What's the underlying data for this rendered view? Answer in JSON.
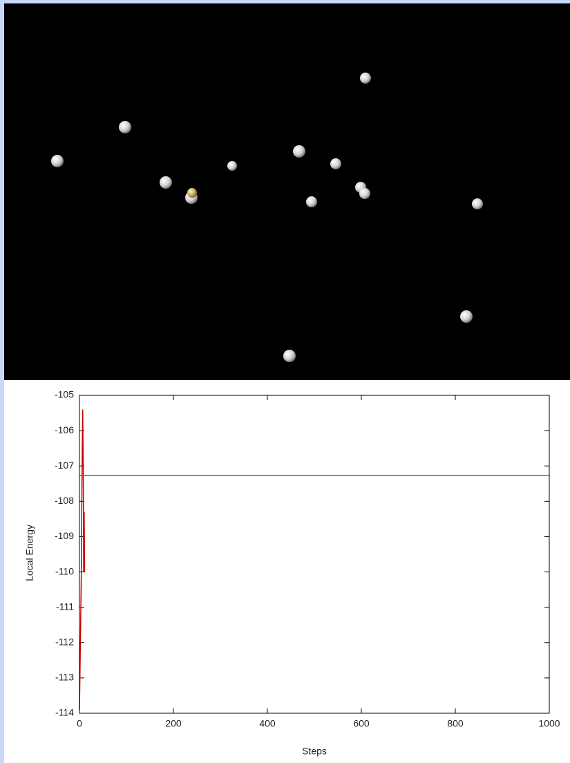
{
  "chart_data": {
    "type": "line",
    "x_label": "Steps",
    "y_label": "Local Energy",
    "xlim": [
      0,
      1000
    ],
    "xticks": [
      0,
      200,
      400,
      600,
      800,
      1000
    ],
    "ylim": [
      -114,
      -105
    ],
    "yticks": [
      -105,
      -106,
      -107,
      -108,
      -109,
      -110,
      -111,
      -112,
      -113,
      -114
    ],
    "grid": false,
    "series": [
      {
        "color": "#cc0000",
        "x": [
          0,
          1,
          2,
          3,
          4,
          5,
          6,
          7,
          8,
          9,
          10,
          11,
          12
        ],
        "values": [
          -113.9,
          -113,
          -112,
          -111,
          -110,
          -108,
          -106.5,
          -105.4,
          -107,
          -110,
          -108.3,
          -110,
          -110
        ]
      },
      {
        "color": "#2e8b2e",
        "x": [
          0,
          1000
        ],
        "values": [
          -107.27,
          -107.27
        ]
      }
    ]
  }
}
